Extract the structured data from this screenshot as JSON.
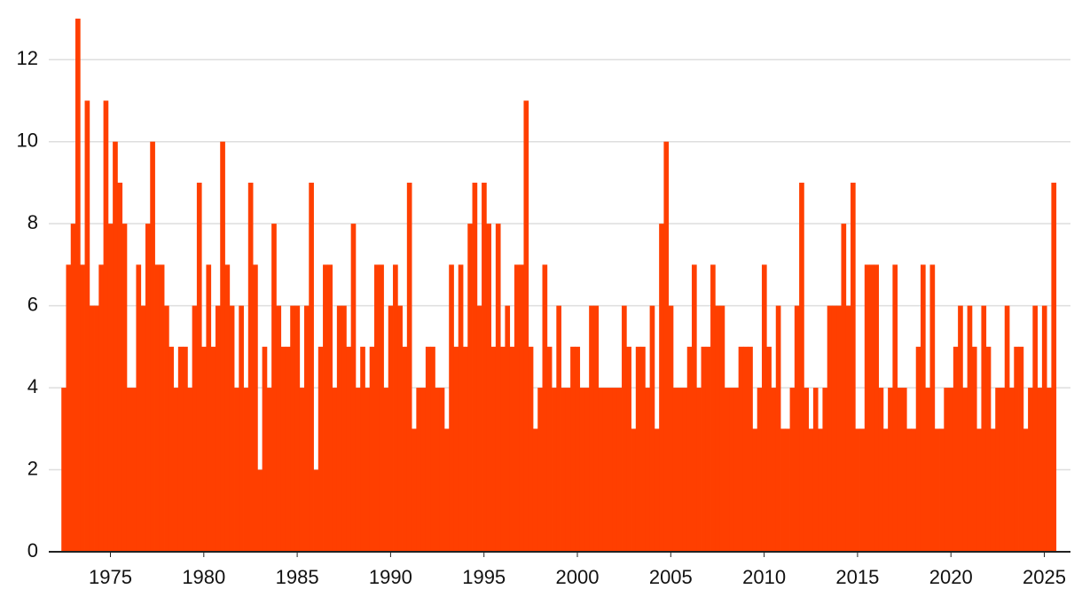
{
  "chart_data": {
    "type": "bar",
    "color": "#ff3f00",
    "grid": true,
    "xlim": [
      1971.7,
      2026.4
    ],
    "xticks": [
      1975,
      1980,
      1985,
      1990,
      1995,
      2000,
      2005,
      2010,
      2015,
      2020,
      2025
    ],
    "ylim": [
      0,
      13
    ],
    "yticks": [
      0,
      2,
      4,
      6,
      8,
      10,
      12
    ],
    "x": [
      1972.5,
      1972.75,
      1973,
      1973.25,
      1973.5,
      1973.75,
      1974,
      1974.25,
      1974.5,
      1974.75,
      1975,
      1975.25,
      1975.5,
      1975.75,
      1976,
      1976.25,
      1976.5,
      1976.75,
      1977,
      1977.25,
      1977.5,
      1977.75,
      1978,
      1978.25,
      1978.5,
      1978.75,
      1979,
      1979.25,
      1979.5,
      1979.75,
      1980,
      1980.25,
      1980.5,
      1980.75,
      1981,
      1981.25,
      1981.5,
      1981.75,
      1982,
      1982.25,
      1982.5,
      1982.75,
      1983,
      1983.25,
      1983.5,
      1983.75,
      1984,
      1984.25,
      1984.5,
      1984.75,
      1985,
      1985.25,
      1985.5,
      1985.75,
      1986,
      1986.25,
      1986.5,
      1986.75,
      1987,
      1987.25,
      1987.5,
      1987.75,
      1988,
      1988.25,
      1988.5,
      1988.75,
      1989,
      1989.25,
      1989.5,
      1989.75,
      1990,
      1990.25,
      1990.5,
      1990.75,
      1991,
      1991.25,
      1991.5,
      1991.75,
      1992,
      1992.25,
      1992.5,
      1992.75,
      1993,
      1993.25,
      1993.5,
      1993.75,
      1994,
      1994.25,
      1994.5,
      1994.75,
      1995,
      1995.25,
      1995.5,
      1995.75,
      1996,
      1996.25,
      1996.5,
      1996.75,
      1997,
      1997.25,
      1997.5,
      1997.75,
      1998,
      1998.25,
      1998.5,
      1998.75,
      1999,
      1999.25,
      1999.5,
      1999.75,
      2000,
      2000.25,
      2000.5,
      2000.75,
      2001,
      2001.25,
      2001.5,
      2001.75,
      2002,
      2002.25,
      2002.5,
      2002.75,
      2003,
      2003.25,
      2003.5,
      2003.75,
      2004,
      2004.25,
      2004.5,
      2004.75,
      2005,
      2005.25,
      2005.5,
      2005.75,
      2006,
      2006.25,
      2006.5,
      2006.75,
      2007,
      2007.25,
      2007.5,
      2007.75,
      2008,
      2008.25,
      2008.5,
      2008.75,
      2009,
      2009.25,
      2009.5,
      2009.75,
      2010,
      2010.25,
      2010.5,
      2010.75,
      2011,
      2011.25,
      2011.5,
      2011.75,
      2012,
      2012.25,
      2012.5,
      2012.75,
      2013,
      2013.25,
      2013.5,
      2013.75,
      2014,
      2014.25,
      2014.5,
      2014.75,
      2015,
      2015.25,
      2015.5,
      2015.75,
      2016,
      2016.25,
      2016.5,
      2016.75,
      2017,
      2017.25,
      2017.5,
      2017.75,
      2018,
      2018.25,
      2018.5,
      2018.75,
      2019,
      2019.25,
      2019.5,
      2019.75,
      2020,
      2020.25,
      2020.5,
      2020.75,
      2021,
      2021.25,
      2021.5,
      2021.75,
      2022,
      2022.25,
      2022.5,
      2022.75,
      2023,
      2023.25,
      2023.5,
      2023.75,
      2024,
      2024.25,
      2024.5,
      2024.75,
      2025,
      2025.25,
      2025.5
    ],
    "values": [
      4,
      7,
      8,
      13,
      7,
      11,
      6,
      6,
      7,
      11,
      8,
      10,
      9,
      8,
      4,
      4,
      7,
      6,
      8,
      10,
      7,
      7,
      6,
      5,
      4,
      5,
      5,
      4,
      6,
      9,
      5,
      7,
      5,
      6,
      10,
      7,
      6,
      4,
      6,
      4,
      9,
      7,
      2,
      5,
      4,
      8,
      6,
      5,
      5,
      6,
      6,
      4,
      6,
      9,
      2,
      5,
      7,
      7,
      4,
      6,
      6,
      5,
      8,
      4,
      5,
      4,
      5,
      7,
      7,
      4,
      6,
      7,
      6,
      5,
      9,
      3,
      4,
      4,
      5,
      5,
      4,
      4,
      3,
      7,
      5,
      7,
      5,
      8,
      9,
      6,
      9,
      8,
      5,
      8,
      5,
      6,
      5,
      7,
      7,
      11,
      5,
      3,
      4,
      7,
      5,
      4,
      6,
      4,
      4,
      5,
      5,
      4,
      4,
      6,
      6,
      4,
      4,
      4,
      4,
      4,
      6,
      5,
      3,
      5,
      5,
      4,
      6,
      3,
      8,
      10,
      6,
      4,
      4,
      4,
      5,
      7,
      4,
      5,
      5,
      7,
      6,
      6,
      4,
      4,
      4,
      5,
      5,
      5,
      3,
      4,
      7,
      5,
      4,
      6,
      3,
      3,
      4,
      6,
      9,
      4,
      3,
      4,
      3,
      4,
      6,
      6,
      6,
      8,
      6,
      9,
      3,
      3,
      7,
      7,
      7,
      4,
      3,
      4,
      7,
      4,
      4,
      3,
      3,
      5,
      7,
      4,
      7,
      3,
      3,
      4,
      4,
      5,
      6,
      4,
      6,
      5,
      3,
      6,
      5,
      3,
      4,
      4,
      6,
      4,
      5,
      5,
      3,
      4,
      6,
      4,
      6,
      4,
      9
    ]
  }
}
